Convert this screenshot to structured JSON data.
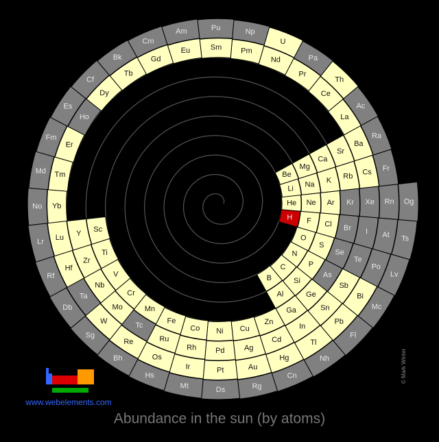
{
  "title": "Abundance in the sun (by atoms)",
  "website": "www.webelements.com",
  "credit": "© Mark Winter",
  "periods": [
    [
      {
        "symbol": "H",
        "color": "#cc0000"
      },
      {
        "symbol": "He",
        "color": "#ffffc0"
      }
    ],
    [
      {
        "symbol": "Li",
        "color": "#ffffc0"
      },
      {
        "symbol": "Be",
        "color": "#ffffc0"
      },
      {
        "symbol": "B",
        "color": "#ffffc0"
      },
      {
        "symbol": "C",
        "color": "#ffffc0"
      },
      {
        "symbol": "N",
        "color": "#ffffc0"
      },
      {
        "symbol": "O",
        "color": "#ffffc0"
      },
      {
        "symbol": "F",
        "color": "#ffffc0"
      },
      {
        "symbol": "Ne",
        "color": "#ffffc0"
      }
    ],
    [
      {
        "symbol": "Na",
        "color": "#ffffc0"
      },
      {
        "symbol": "Mg",
        "color": "#ffffc0"
      },
      {
        "symbol": "Al",
        "color": "#ffffc0"
      },
      {
        "symbol": "Si",
        "color": "#ffffc0"
      },
      {
        "symbol": "P",
        "color": "#ffffc0"
      },
      {
        "symbol": "S",
        "color": "#ffffc0"
      },
      {
        "symbol": "Cl",
        "color": "#ffffc0"
      },
      {
        "symbol": "Ar",
        "color": "#ffffc0"
      }
    ],
    [
      {
        "symbol": "K",
        "color": "#ffffc0"
      },
      {
        "symbol": "Ca",
        "color": "#ffffc0"
      },
      {
        "symbol": "Sc",
        "color": "#ffffc0"
      },
      {
        "symbol": "Ti",
        "color": "#ffffc0"
      },
      {
        "symbol": "V",
        "color": "#ffffc0"
      },
      {
        "symbol": "Cr",
        "color": "#ffffc0"
      },
      {
        "symbol": "Mn",
        "color": "#ffffc0"
      },
      {
        "symbol": "Fe",
        "color": "#ffffc0"
      },
      {
        "symbol": "Co",
        "color": "#ffffc0"
      },
      {
        "symbol": "Ni",
        "color": "#ffffc0"
      },
      {
        "symbol": "Cu",
        "color": "#ffffc0"
      },
      {
        "symbol": "Zn",
        "color": "#ffffc0"
      },
      {
        "symbol": "Ga",
        "color": "#ffffc0"
      },
      {
        "symbol": "Ge",
        "color": "#ffffc0"
      },
      {
        "symbol": "As",
        "color": "#808080"
      },
      {
        "symbol": "Se",
        "color": "#808080"
      },
      {
        "symbol": "Br",
        "color": "#808080"
      },
      {
        "symbol": "Kr",
        "color": "#808080"
      }
    ],
    [
      {
        "symbol": "Rb",
        "color": "#ffffc0"
      },
      {
        "symbol": "Sr",
        "color": "#ffffc0"
      },
      {
        "symbol": "Y",
        "color": "#ffffc0"
      },
      {
        "symbol": "Zr",
        "color": "#ffffc0"
      },
      {
        "symbol": "Nb",
        "color": "#ffffc0"
      },
      {
        "symbol": "Mo",
        "color": "#ffffc0"
      },
      {
        "symbol": "Tc",
        "color": "#808080"
      },
      {
        "symbol": "Ru",
        "color": "#ffffc0"
      },
      {
        "symbol": "Rh",
        "color": "#ffffc0"
      },
      {
        "symbol": "Pd",
        "color": "#ffffc0"
      },
      {
        "symbol": "Ag",
        "color": "#ffffc0"
      },
      {
        "symbol": "Cd",
        "color": "#ffffc0"
      },
      {
        "symbol": "In",
        "color": "#ffffc0"
      },
      {
        "symbol": "Sn",
        "color": "#ffffc0"
      },
      {
        "symbol": "Sb",
        "color": "#ffffc0"
      },
      {
        "symbol": "Te",
        "color": "#808080"
      },
      {
        "symbol": "I",
        "color": "#808080"
      },
      {
        "symbol": "Xe",
        "color": "#808080"
      }
    ],
    [
      {
        "symbol": "Cs",
        "color": "#ffffc0"
      },
      {
        "symbol": "Ba",
        "color": "#ffffc0"
      },
      {
        "symbol": "La",
        "color": "#ffffc0"
      },
      {
        "symbol": "Ce",
        "color": "#ffffc0"
      },
      {
        "symbol": "Pr",
        "color": "#ffffc0"
      },
      {
        "symbol": "Nd",
        "color": "#ffffc0"
      },
      {
        "symbol": "Pm",
        "color": "#ffffc0"
      },
      {
        "symbol": "Sm",
        "color": "#ffffc0"
      },
      {
        "symbol": "Eu",
        "color": "#ffffc0"
      },
      {
        "symbol": "Gd",
        "color": "#ffffc0"
      },
      {
        "symbol": "Tb",
        "color": "#ffffc0"
      },
      {
        "symbol": "Dy",
        "color": "#ffffc0"
      },
      {
        "symbol": "Ho",
        "color": "#808080"
      },
      {
        "symbol": "Er",
        "color": "#ffffc0"
      },
      {
        "symbol": "Tm",
        "color": "#ffffc0"
      },
      {
        "symbol": "Yb",
        "color": "#ffffc0"
      },
      {
        "symbol": "Lu",
        "color": "#ffffc0"
      },
      {
        "symbol": "Hf",
        "color": "#ffffc0"
      },
      {
        "symbol": "Ta",
        "color": "#808080"
      },
      {
        "symbol": "W",
        "color": "#ffffc0"
      },
      {
        "symbol": "Re",
        "color": "#ffffc0"
      },
      {
        "symbol": "Os",
        "color": "#ffffc0"
      },
      {
        "symbol": "Ir",
        "color": "#ffffc0"
      },
      {
        "symbol": "Pt",
        "color": "#ffffc0"
      },
      {
        "symbol": "Au",
        "color": "#ffffc0"
      },
      {
        "symbol": "Hg",
        "color": "#ffffc0"
      },
      {
        "symbol": "Tl",
        "color": "#ffffc0"
      },
      {
        "symbol": "Pb",
        "color": "#ffffc0"
      },
      {
        "symbol": "Bi",
        "color": "#ffffc0"
      },
      {
        "symbol": "Po",
        "color": "#808080"
      },
      {
        "symbol": "At",
        "color": "#808080"
      },
      {
        "symbol": "Rn",
        "color": "#808080"
      }
    ],
    [
      {
        "symbol": "Fr",
        "color": "#808080"
      },
      {
        "symbol": "Ra",
        "color": "#808080"
      },
      {
        "symbol": "Ac",
        "color": "#808080"
      },
      {
        "symbol": "Th",
        "color": "#ffffc0"
      },
      {
        "symbol": "Pa",
        "color": "#808080"
      },
      {
        "symbol": "U",
        "color": "#ffffc0"
      },
      {
        "symbol": "Np",
        "color": "#808080"
      },
      {
        "symbol": "Pu",
        "color": "#808080"
      },
      {
        "symbol": "Am",
        "color": "#808080"
      },
      {
        "symbol": "Cm",
        "color": "#808080"
      },
      {
        "symbol": "Bk",
        "color": "#808080"
      },
      {
        "symbol": "Cf",
        "color": "#808080"
      },
      {
        "symbol": "Es",
        "color": "#808080"
      },
      {
        "symbol": "Fm",
        "color": "#808080"
      },
      {
        "symbol": "Md",
        "color": "#808080"
      },
      {
        "symbol": "No",
        "color": "#808080"
      },
      {
        "symbol": "Lr",
        "color": "#808080"
      },
      {
        "symbol": "Rf",
        "color": "#808080"
      },
      {
        "symbol": "Db",
        "color": "#808080"
      },
      {
        "symbol": "Sg",
        "color": "#808080"
      },
      {
        "symbol": "Bh",
        "color": "#808080"
      },
      {
        "symbol": "Hs",
        "color": "#808080"
      },
      {
        "symbol": "Mt",
        "color": "#808080"
      },
      {
        "symbol": "Ds",
        "color": "#808080"
      },
      {
        "symbol": "Rg",
        "color": "#808080"
      },
      {
        "symbol": "Cn",
        "color": "#808080"
      },
      {
        "symbol": "Nh",
        "color": "#808080"
      },
      {
        "symbol": "Fl",
        "color": "#808080"
      },
      {
        "symbol": "Mc",
        "color": "#808080"
      },
      {
        "symbol": "Lv",
        "color": "#808080"
      },
      {
        "symbol": "Ts",
        "color": "#808080"
      },
      {
        "symbol": "Og",
        "color": "#808080"
      }
    ]
  ]
}
